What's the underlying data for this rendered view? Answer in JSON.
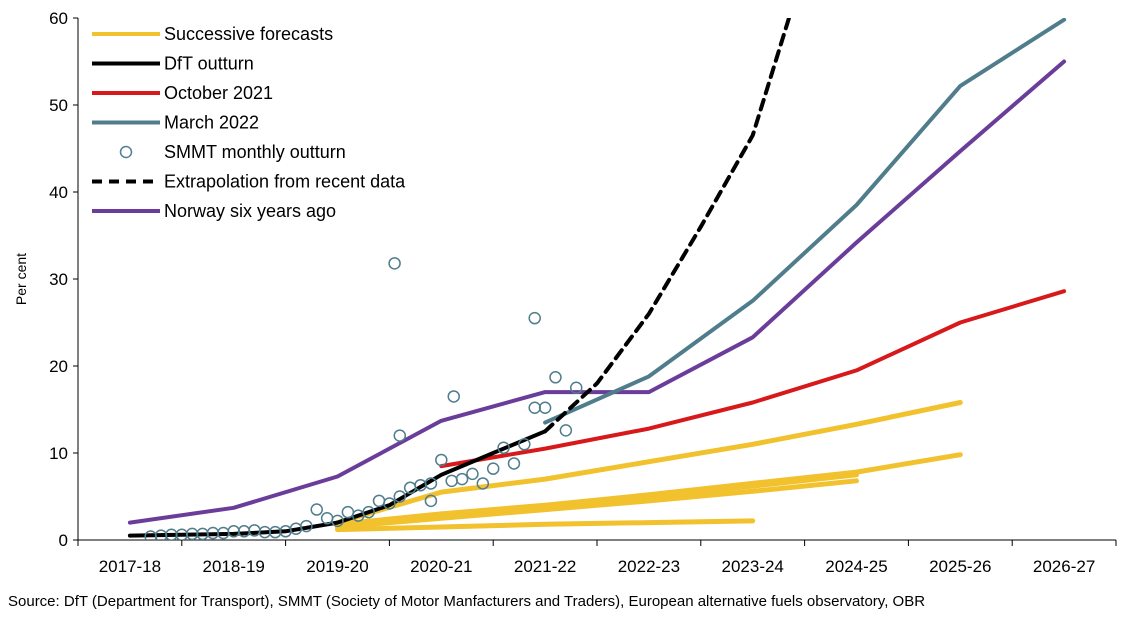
{
  "chart_data": {
    "type": "line",
    "ylabel": "Per cent",
    "ylim": [
      0,
      60
    ],
    "yticks": [
      0,
      10,
      20,
      30,
      40,
      50,
      60
    ],
    "categories": [
      "2017-18",
      "2018-19",
      "2019-20",
      "2020-21",
      "2021-22",
      "2022-23",
      "2023-24",
      "2024-25",
      "2025-26",
      "2026-27"
    ],
    "legend_position": "top-left",
    "colors": {
      "successive": "#F2C12E",
      "dft": "#000000",
      "october": "#D7191C",
      "march": "#507D8C",
      "smmt": "#507D8C",
      "extrapolation": "#000000",
      "norway": "#6A3D9A"
    },
    "legend": [
      {
        "key": "successive",
        "label": "Successive forecasts",
        "style": "line"
      },
      {
        "key": "dft",
        "label": "DfT outturn",
        "style": "line"
      },
      {
        "key": "october",
        "label": "October 2021",
        "style": "line"
      },
      {
        "key": "march",
        "label": "March 2022",
        "style": "line"
      },
      {
        "key": "smmt",
        "label": "SMMT monthly outturn",
        "style": "marker"
      },
      {
        "key": "extrapolation",
        "label": "Extrapolation from recent data",
        "style": "dashed"
      },
      {
        "key": "norway",
        "label": "Norway six years ago",
        "style": "line"
      }
    ],
    "successive_forecasts": [
      {
        "x": [
          2.0,
          3.0,
          4.0,
          5.0,
          6.0
        ],
        "y": [
          1.2,
          1.5,
          1.8,
          2.0,
          2.2
        ]
      },
      {
        "x": [
          2.0,
          3.0,
          4.0,
          5.0,
          6.0,
          7.0
        ],
        "y": [
          1.5,
          2.5,
          3.5,
          4.5,
          5.6,
          6.8
        ]
      },
      {
        "x": [
          2.0,
          3.0,
          4.0,
          5.0,
          6.0,
          7.0
        ],
        "y": [
          1.5,
          2.8,
          3.8,
          5.0,
          6.2,
          7.5
        ]
      },
      {
        "x": [
          2.0,
          3.0,
          4.0,
          5.0,
          6.0,
          7.0,
          8.0
        ],
        "y": [
          1.8,
          3.0,
          4.0,
          5.2,
          6.5,
          7.8,
          9.8
        ]
      },
      {
        "x": [
          2.0,
          3.0,
          4.0,
          5.0,
          6.0,
          7.0,
          8.0
        ],
        "y": [
          2.0,
          5.5,
          7.0,
          9.0,
          11.0,
          13.3,
          15.8
        ]
      }
    ],
    "dft_outturn": {
      "x": [
        0.0,
        0.5,
        1.0,
        1.5,
        2.0,
        2.5,
        3.0,
        3.5,
        4.0
      ],
      "y": [
        0.5,
        0.6,
        0.7,
        1.0,
        2.0,
        4.0,
        7.5,
        10.0,
        12.5
      ]
    },
    "october_2021": {
      "x": [
        3.0,
        4.0,
        5.0,
        6.0,
        7.0,
        8.0,
        9.0
      ],
      "y": [
        8.5,
        10.5,
        12.8,
        15.8,
        19.5,
        25.0,
        28.6
      ]
    },
    "march_2022": {
      "x": [
        4.0,
        5.0,
        6.0,
        7.0,
        8.0,
        9.0
      ],
      "y": [
        13.5,
        18.8,
        27.5,
        38.5,
        52.2,
        59.8
      ]
    },
    "extrapolation": {
      "x": [
        4.0,
        4.5,
        5.0,
        5.5,
        6.0,
        6.35
      ],
      "y": [
        12.5,
        18.0,
        26.0,
        36.0,
        46.5,
        60.0
      ]
    },
    "norway": {
      "x": [
        0.0,
        1.0,
        2.0,
        3.0,
        4.0,
        4.5,
        5.0,
        6.0,
        7.0,
        8.0,
        9.0
      ],
      "y": [
        2.0,
        3.7,
        7.3,
        13.7,
        17.0,
        17.0,
        17.0,
        23.3,
        34.2,
        44.7,
        55.0
      ]
    },
    "smmt_monthly": {
      "x": [
        0.2,
        0.3,
        0.4,
        0.5,
        0.6,
        0.7,
        0.8,
        0.9,
        1.0,
        1.1,
        1.2,
        1.3,
        1.4,
        1.5,
        1.6,
        1.7,
        1.8,
        1.9,
        2.0,
        2.1,
        2.2,
        2.3,
        2.4,
        2.5,
        2.6,
        2.7,
        2.8,
        2.9,
        3.0,
        3.1,
        3.2,
        3.3,
        3.4,
        3.5,
        3.6,
        3.7,
        3.8,
        3.9,
        4.0,
        4.1,
        4.2,
        4.3
      ],
      "y": [
        0.4,
        0.5,
        0.6,
        0.6,
        0.7,
        0.7,
        0.8,
        0.8,
        1.0,
        1.0,
        1.1,
        0.9,
        0.9,
        1.0,
        1.3,
        1.6,
        3.5,
        2.5,
        2.2,
        3.2,
        2.8,
        3.2,
        4.5,
        4.2,
        5.0,
        6.0,
        6.3,
        6.5,
        9.2,
        6.8,
        7.0,
        7.6,
        6.5,
        8.2,
        10.6,
        8.8,
        11.0,
        15.2,
        15.2,
        18.7,
        12.6,
        17.5
      ],
      "extra": [
        {
          "x": 2.55,
          "y": 31.8
        },
        {
          "x": 2.6,
          "y": 12.0
        },
        {
          "x": 3.12,
          "y": 16.5
        },
        {
          "x": 3.9,
          "y": 25.5
        },
        {
          "x": 2.9,
          "y": 4.5
        }
      ]
    }
  },
  "source_text": "Source: DfT (Department for Transport), SMMT (Society of Motor Manfacturers and Traders), European alternative fuels observatory, OBR"
}
